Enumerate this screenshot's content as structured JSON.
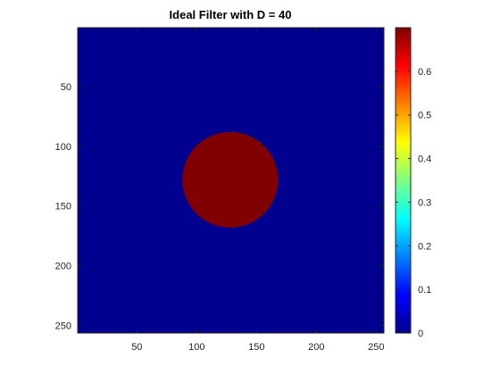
{
  "chart_data": {
    "type": "heatmap",
    "title": "Ideal Filter with D = 40",
    "xlabel": "",
    "ylabel": "",
    "grid": false,
    "image": {
      "rows": 256,
      "cols": 256,
      "background_value": 0,
      "disk": {
        "center_x": 128,
        "center_y": 128,
        "radius": 40,
        "value": 0.7
      }
    },
    "x_axis": {
      "lim": [
        0.5,
        256.5
      ],
      "ticks": [
        50,
        100,
        150,
        200,
        250
      ]
    },
    "y_axis": {
      "lim": [
        0.5,
        256.5
      ],
      "reversed": true,
      "ticks": [
        50,
        100,
        150,
        200,
        250
      ]
    },
    "colorbar": {
      "colormap": "jet",
      "clim": [
        0,
        0.7
      ],
      "ticks": [
        0,
        0.1,
        0.2,
        0.3,
        0.4,
        0.5,
        0.6
      ],
      "tick_labels": [
        "0",
        "0.1",
        "0.2",
        "0.3",
        "0.4",
        "0.5",
        "0.6"
      ]
    }
  }
}
